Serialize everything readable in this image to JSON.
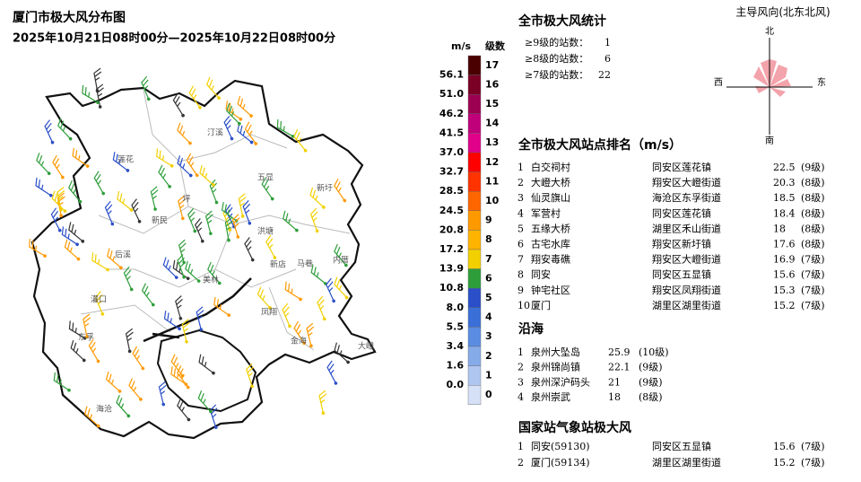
{
  "header": {
    "title": "厦门市极大风分布图",
    "subtitle": "2025年10月21日08时00分—2025年10月22日08时00分"
  },
  "map": {
    "places": [
      "莲花",
      "汀溪",
      "五显",
      "新圩",
      "坪",
      "新民",
      "洪塘",
      "后溪",
      "新店",
      "内厝",
      "马巷",
      "凤翔",
      "灌口",
      "海沧",
      "金海",
      "大嶝",
      "东孚",
      "美林"
    ]
  },
  "scale": {
    "unit": "m/s",
    "level_title": "级数",
    "speeds": [
      "56.1",
      "51.0",
      "46.2",
      "41.5",
      "37.0",
      "32.7",
      "28.5",
      "24.5",
      "20.8",
      "17.2",
      "13.9",
      "10.8",
      "8.0",
      "5.5",
      "3.4",
      "1.6",
      "0.0"
    ],
    "levels": [
      "17",
      "16",
      "15",
      "14",
      "13",
      "12",
      "11",
      "10",
      "9",
      "8",
      "7",
      "6",
      "5",
      "4",
      "3",
      "2",
      "1",
      "0"
    ],
    "colors": [
      "#4a0000",
      "#7a0026",
      "#9c0050",
      "#c0007a",
      "#e0008a",
      "#ff0000",
      "#ff3300",
      "#ff6600",
      "#ff9900",
      "#ffb400",
      "#f2d000",
      "#2e9e3a",
      "#2a4fc8",
      "#3a6fd8",
      "#5a8ce2",
      "#86abe9",
      "#aec6f0",
      "#d6e1f7"
    ]
  },
  "stats": {
    "title": "全市极大风统计",
    "rows": [
      [
        "≥9级的站数：",
        "1"
      ],
      [
        "≥8级的站数：",
        "6"
      ],
      [
        "≥7级的站数：",
        "22"
      ]
    ]
  },
  "ranking": {
    "title": "全市极大风站点排名（m/s）",
    "rows": [
      [
        "1",
        "白交祠村",
        "同安区莲花镇",
        "22.5",
        "(9级)"
      ],
      [
        "2",
        "大嶝大桥",
        "翔安区大嶝街道",
        "20.3",
        "(8级)"
      ],
      [
        "3",
        "仙灵旗山",
        "海沧区东孚街道",
        "18.5",
        "(8级)"
      ],
      [
        "4",
        "军营村",
        "同安区莲花镇",
        "18.4",
        "(8级)"
      ],
      [
        "5",
        "五缘大桥",
        "湖里区禾山街道",
        "18",
        "(8级)"
      ],
      [
        "6",
        "古宅水库",
        "翔安区新圩镇",
        "17.6",
        "(8级)"
      ],
      [
        "7",
        "翔安毒礁",
        "翔安区大嶝街道",
        "16.9",
        "(7级)"
      ],
      [
        "8",
        "同安",
        "同安区五显镇",
        "15.6",
        "(7级)"
      ],
      [
        "9",
        "钟宅社区",
        "翔安区凤翔街道",
        "15.3",
        "(7级)"
      ],
      [
        "10",
        "厦门",
        "湖里区湖里街道",
        "15.2",
        "(7级)"
      ]
    ]
  },
  "coast": {
    "title": "沿海",
    "rows": [
      [
        "1",
        "泉州大坠岛",
        "25.9",
        "(10级)"
      ],
      [
        "2",
        "泉州锦尚镇",
        "22.1",
        "(9级)"
      ],
      [
        "3",
        "泉州深沪码头",
        "21",
        "(9级)"
      ],
      [
        "4",
        "泉州崇武",
        "18",
        "(8级)"
      ]
    ]
  },
  "national": {
    "title": "国家站气象站极大风",
    "rows": [
      [
        "1",
        "同安(59130)",
        "同安区五显镇",
        "15.6",
        "(7级)"
      ],
      [
        "2",
        "厦门(59134)",
        "湖里区湖里街道",
        "15.2",
        "(7级)"
      ]
    ]
  },
  "wind_rose": {
    "title": "主导风向(北东北风)",
    "north": "北",
    "east": "东",
    "south": "南",
    "west": "西"
  }
}
